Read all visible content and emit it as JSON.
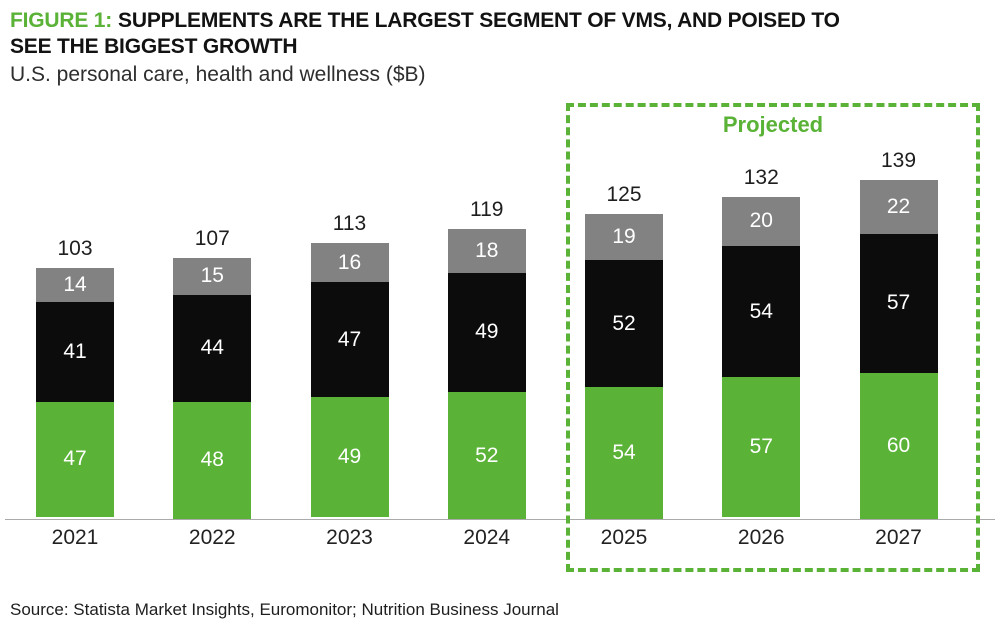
{
  "header": {
    "figure_label": "FIGURE 1:",
    "title_rest_line1": "SUPPLEMENTS ARE THE LARGEST SEGMENT OF VMS, AND POISED TO",
    "title_line2": "SEE THE BIGGEST GROWTH",
    "subtitle": "U.S. personal care, health and wellness ($B)"
  },
  "chart_data": {
    "type": "bar",
    "stacked": true,
    "title": "U.S. personal care, health and wellness ($B)",
    "categories": [
      "2021",
      "2022",
      "2023",
      "2024",
      "2025",
      "2026",
      "2027"
    ],
    "series": [
      {
        "name": "green-bottom-segment",
        "color": "#5AB237",
        "values": [
          47,
          48,
          49,
          52,
          54,
          57,
          60
        ]
      },
      {
        "name": "black-middle-segment",
        "color": "#0C0C0C",
        "values": [
          41,
          44,
          47,
          49,
          52,
          54,
          57
        ]
      },
      {
        "name": "gray-top-segment",
        "color": "#828282",
        "values": [
          14,
          15,
          16,
          18,
          19,
          20,
          22
        ]
      }
    ],
    "totals": [
      103,
      107,
      113,
      119,
      125,
      132,
      139
    ],
    "projected": {
      "label": "Projected",
      "years": [
        "2025",
        "2026",
        "2027"
      ]
    },
    "xlabel": "",
    "ylabel": "",
    "ylim": [
      0,
      145
    ],
    "grid": false,
    "legend_position": "none",
    "value_labels": "inside-white",
    "total_labels": "above-bars"
  },
  "footer": {
    "source": "Source: Statista Market Insights, Euromonitor; Nutrition Business Journal"
  },
  "colors": {
    "accent_green": "#5AB237",
    "segment_black": "#0C0C0C",
    "segment_gray": "#828282",
    "axis_line": "#AAAAAA",
    "text_dark": "#1E1E1E",
    "value_label_light": "#FFFFFF"
  }
}
